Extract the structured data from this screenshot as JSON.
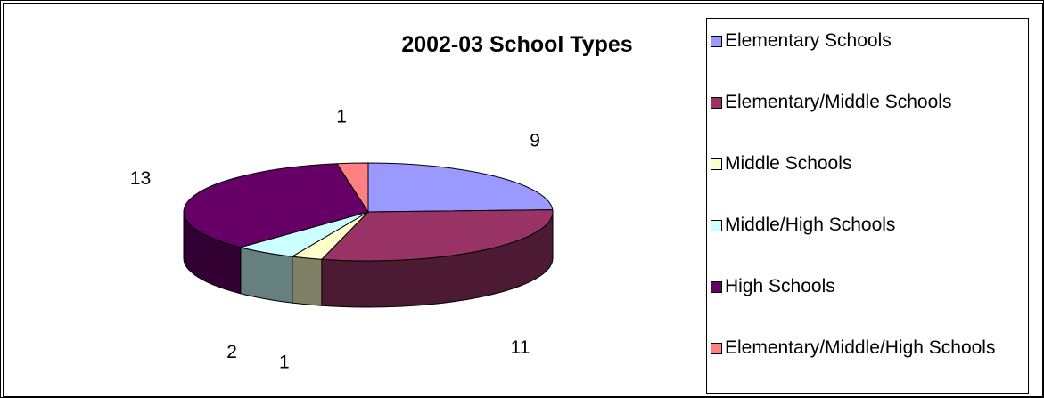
{
  "chart_data": {
    "type": "pie",
    "title": "2002-03 School Types",
    "categories": [
      "Elementary Schools",
      "Elementary/Middle Schools",
      "Middle Schools",
      "Middle/High Schools",
      "High Schools",
      "Elementary/Middle/High Schools"
    ],
    "values": [
      9,
      11,
      1,
      2,
      13,
      1
    ],
    "colors": [
      "#9999ff",
      "#993366",
      "#ffffcc",
      "#ccffff",
      "#660066",
      "#ff8080"
    ],
    "legend_position": "right",
    "style": "3d-pie"
  }
}
